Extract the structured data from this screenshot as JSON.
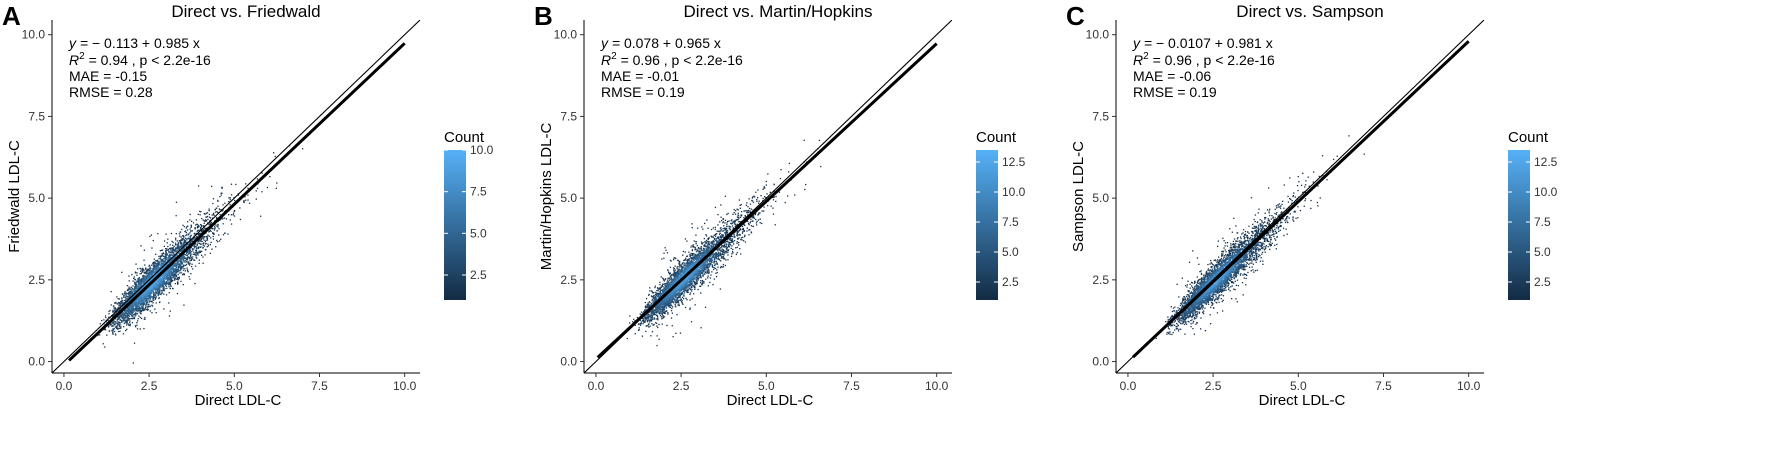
{
  "chart_data": [
    {
      "panel_letter": "A",
      "type": "scatter",
      "title": "Direct vs. Friedwald",
      "xlabel": "Direct LDL-C",
      "ylabel": "Friedwald LDL-C",
      "xlim": [
        -0.35,
        10.45
      ],
      "ylim": [
        -0.35,
        10.45
      ],
      "xticks": [
        "0.0",
        "2.5",
        "5.0",
        "7.5",
        "10.0"
      ],
      "yticks": [
        "0.0",
        "2.5",
        "5.0",
        "7.5",
        "10.0"
      ],
      "identity_line": true,
      "regression": {
        "intercept": -0.113,
        "slope": 0.985,
        "x_range": [
          0.15,
          10.0
        ]
      },
      "stats": {
        "equation_prefix": "y = ",
        "equation_body": "− 0.113 + 0.985 x",
        "r2_prefix": "R",
        "r2_sup": "2",
        "r2_rest": " = 0.94 , p < 2.2e-16",
        "mae": "MAE = -0.15",
        "rmse": "RMSE = 0.28"
      },
      "legend": {
        "title": "Count",
        "min": 1,
        "max": 10,
        "ticks": [
          "2.5",
          "5.0",
          "7.5",
          "10.0"
        ],
        "tick_values": [
          2.5,
          5.0,
          7.5,
          10.0
        ],
        "color_low": "#132b43",
        "color_high": "#56b1f7",
        "position": "right"
      },
      "point_cloud": {
        "center": [
          2.6,
          2.5
        ],
        "spread_sd": 0.18
      }
    },
    {
      "panel_letter": "B",
      "type": "scatter",
      "title": "Direct vs. Martin/Hopkins",
      "xlabel": "Direct LDL-C",
      "ylabel": "Martin/Hopkins LDL-C",
      "xlim": [
        -0.35,
        10.45
      ],
      "ylim": [
        -0.35,
        10.45
      ],
      "xticks": [
        "0.0",
        "2.5",
        "5.0",
        "7.5",
        "10.0"
      ],
      "yticks": [
        "0.0",
        "2.5",
        "5.0",
        "7.5",
        "10.0"
      ],
      "identity_line": true,
      "regression": {
        "intercept": 0.078,
        "slope": 0.965,
        "x_range": [
          0.05,
          10.0
        ]
      },
      "stats": {
        "equation_prefix": "y = ",
        "equation_body": "0.078 + 0.965 x",
        "r2_prefix": "R",
        "r2_sup": "2",
        "r2_rest": " = 0.96 , p < 2.2e-16",
        "mae": "MAE = -0.01",
        "rmse": "RMSE = 0.19"
      },
      "legend": {
        "title": "Count",
        "min": 1,
        "max": 13.5,
        "ticks": [
          "2.5",
          "5.0",
          "7.5",
          "10.0",
          "12.5"
        ],
        "tick_values": [
          2.5,
          5.0,
          7.5,
          10.0,
          12.5
        ],
        "color_low": "#132b43",
        "color_high": "#56b1f7",
        "position": "right"
      },
      "point_cloud": {
        "center": [
          2.6,
          2.6
        ],
        "spread_sd": 0.15
      }
    },
    {
      "panel_letter": "C",
      "type": "scatter",
      "title": "Direct vs. Sampson",
      "xlabel": "Direct LDL-C",
      "ylabel": "Sampson LDL-C",
      "xlim": [
        -0.35,
        10.45
      ],
      "ylim": [
        -0.35,
        10.45
      ],
      "xticks": [
        "0.0",
        "2.5",
        "5.0",
        "7.5",
        "10.0"
      ],
      "yticks": [
        "0.0",
        "2.5",
        "5.0",
        "7.5",
        "10.0"
      ],
      "identity_line": true,
      "regression": {
        "intercept": -0.0107,
        "slope": 0.981,
        "x_range": [
          0.15,
          10.0
        ]
      },
      "stats": {
        "equation_prefix": "y = ",
        "equation_body": "− 0.0107 + 0.981 x",
        "r2_prefix": "R",
        "r2_sup": "2",
        "r2_rest": " = 0.96 , p < 2.2e-16",
        "mae": "MAE = -0.06",
        "rmse": "RMSE = 0.19"
      },
      "legend": {
        "title": "Count",
        "min": 1,
        "max": 13.5,
        "ticks": [
          "2.5",
          "5.0",
          "7.5",
          "10.0",
          "12.5"
        ],
        "tick_values": [
          2.5,
          5.0,
          7.5,
          10.0,
          12.5
        ],
        "color_low": "#132b43",
        "color_high": "#56b1f7",
        "position": "right"
      },
      "point_cloud": {
        "center": [
          2.6,
          2.55
        ],
        "spread_sd": 0.15
      }
    }
  ]
}
